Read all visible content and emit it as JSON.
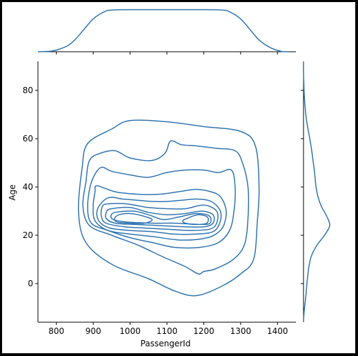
{
  "chart_data": {
    "type": "kde_jointplot",
    "xlabel": "PassengerId",
    "ylabel": "Age",
    "xlim": [
      750,
      1450
    ],
    "ylim": [
      -16,
      92
    ],
    "x_ticks": [
      800,
      900,
      1000,
      1100,
      1200,
      1300,
      1400
    ],
    "y_ticks": [
      0,
      20,
      40,
      60,
      80
    ],
    "color": "#2f74b0",
    "contour_levels": 10,
    "contours": [
      {
        "level": 1,
        "points": [
          [
            950,
            64
          ],
          [
            1000,
            67.5
          ],
          [
            1100,
            67
          ],
          [
            1200,
            65
          ],
          [
            1300,
            63
          ],
          [
            1340,
            57
          ],
          [
            1350,
            40
          ],
          [
            1345,
            25
          ],
          [
            1335,
            10
          ],
          [
            1300,
            4
          ],
          [
            1250,
            -1
          ],
          [
            1180,
            -5
          ],
          [
            1120,
            -3
          ],
          [
            1050,
            2
          ],
          [
            950,
            8
          ],
          [
            880,
            17
          ],
          [
            860,
            30
          ],
          [
            870,
            48
          ],
          [
            885,
            58
          ]
        ]
      },
      {
        "level": 2,
        "points": [
          [
            920,
            54
          ],
          [
            960,
            55
          ],
          [
            1000,
            52
          ],
          [
            1060,
            51
          ],
          [
            1095,
            54
          ],
          [
            1110,
            59
          ],
          [
            1140,
            57.5
          ],
          [
            1180,
            57
          ],
          [
            1235,
            56
          ],
          [
            1285,
            55
          ],
          [
            1305,
            50
          ],
          [
            1320,
            40
          ],
          [
            1320,
            27
          ],
          [
            1310,
            16
          ],
          [
            1280,
            10
          ],
          [
            1230,
            6
          ],
          [
            1200,
            5
          ],
          [
            1185,
            4
          ],
          [
            1150,
            7
          ],
          [
            1090,
            11
          ],
          [
            1020,
            16
          ],
          [
            950,
            20
          ],
          [
            890,
            24
          ],
          [
            872,
            32
          ],
          [
            880,
            42
          ],
          [
            890,
            51
          ]
        ]
      },
      {
        "level": 3,
        "points": [
          [
            920,
            48
          ],
          [
            950,
            46.5
          ],
          [
            1000,
            45
          ],
          [
            1050,
            44
          ],
          [
            1100,
            46
          ],
          [
            1150,
            47
          ],
          [
            1200,
            47
          ],
          [
            1240,
            46
          ],
          [
            1275,
            47
          ],
          [
            1285,
            40
          ],
          [
            1282,
            30
          ],
          [
            1270,
            22
          ],
          [
            1240,
            17
          ],
          [
            1190,
            15
          ],
          [
            1120,
            15
          ],
          [
            1060,
            17
          ],
          [
            1000,
            19
          ],
          [
            940,
            22
          ],
          [
            895,
            25
          ],
          [
            885,
            32
          ],
          [
            895,
            42
          ]
        ]
      },
      {
        "level": 4,
        "points": [
          [
            910,
            40.5
          ],
          [
            960,
            38
          ],
          [
            1020,
            37
          ],
          [
            1080,
            37
          ],
          [
            1130,
            38
          ],
          [
            1180,
            39
          ],
          [
            1220,
            38
          ],
          [
            1245,
            36
          ],
          [
            1260,
            31
          ],
          [
            1258,
            26
          ],
          [
            1245,
            22
          ],
          [
            1210,
            19
          ],
          [
            1140,
            18
          ],
          [
            1060,
            19.5
          ],
          [
            1000,
            20.5
          ],
          [
            940,
            22
          ],
          [
            905,
            26
          ],
          [
            900,
            32
          ],
          [
            905,
            38
          ]
        ]
      },
      {
        "level": 5,
        "points": [
          [
            940,
            35.5
          ],
          [
            980,
            35
          ],
          [
            1020,
            34.5
          ],
          [
            1060,
            34
          ],
          [
            1100,
            34
          ],
          [
            1140,
            34.5
          ],
          [
            1180,
            35
          ],
          [
            1220,
            34
          ],
          [
            1245,
            30
          ],
          [
            1243,
            25
          ],
          [
            1225,
            21.5
          ],
          [
            1180,
            20.5
          ],
          [
            1120,
            20.5
          ],
          [
            1060,
            21.5
          ],
          [
            1000,
            22
          ],
          [
            945,
            23
          ],
          [
            915,
            26
          ],
          [
            912,
            31
          ]
        ]
      },
      {
        "level": 6,
        "points": [
          [
            940,
            33
          ],
          [
            990,
            33
          ],
          [
            1050,
            31.5
          ],
          [
            1100,
            31
          ],
          [
            1150,
            31
          ],
          [
            1200,
            32.5
          ],
          [
            1235,
            30
          ],
          [
            1235,
            25
          ],
          [
            1215,
            22.5
          ],
          [
            1160,
            22
          ],
          [
            1100,
            22.5
          ],
          [
            1040,
            23
          ],
          [
            985,
            23.5
          ],
          [
            935,
            25
          ],
          [
            922,
            28
          ],
          [
            925,
            32
          ]
        ]
      },
      {
        "level": 7,
        "points": [
          [
            950,
            31
          ],
          [
            1000,
            31.5
          ],
          [
            1050,
            29.5
          ],
          [
            1100,
            28.5
          ],
          [
            1150,
            29
          ],
          [
            1195,
            30
          ],
          [
            1225,
            28.5
          ],
          [
            1225,
            25
          ],
          [
            1200,
            23.5
          ],
          [
            1150,
            23.5
          ],
          [
            1080,
            24
          ],
          [
            1010,
            24.5
          ],
          [
            960,
            25
          ],
          [
            935,
            27
          ],
          [
            937,
            30
          ]
        ]
      },
      {
        "level": 8,
        "points": [
          [
            960,
            29.5
          ],
          [
            1010,
            30
          ],
          [
            1050,
            28.5
          ],
          [
            1090,
            26.5
          ],
          [
            1130,
            27.5
          ],
          [
            1180,
            29
          ],
          [
            1215,
            28
          ],
          [
            1217,
            25
          ],
          [
            1190,
            24.5
          ],
          [
            1120,
            25
          ],
          [
            1060,
            25
          ],
          [
            990,
            25.5
          ],
          [
            955,
            26.5
          ],
          [
            948,
            28
          ]
        ]
      },
      {
        "level": 9,
        "points": [
          [
            970,
            28.5
          ],
          [
            1000,
            29
          ],
          [
            1035,
            28
          ],
          [
            1060,
            26.5
          ],
          [
            1040,
            25
          ],
          [
            1000,
            25
          ],
          [
            965,
            25.5
          ],
          [
            958,
            27
          ]
        ]
      },
      {
        "level": 10,
        "points": [
          [
            1155,
            27
          ],
          [
            1185,
            28.5
          ],
          [
            1210,
            27.5
          ],
          [
            1208,
            25
          ],
          [
            1180,
            24.5
          ],
          [
            1150,
            25
          ],
          [
            1143,
            26
          ]
        ]
      }
    ],
    "marginal_x": {
      "x": [
        750,
        780,
        800,
        830,
        850,
        870,
        900,
        930,
        950,
        1000,
        1100,
        1200,
        1250,
        1270,
        1300,
        1330,
        1350,
        1380,
        1410,
        1430
      ],
      "density": [
        0,
        0.01,
        0.04,
        0.14,
        0.28,
        0.48,
        0.78,
        0.95,
        0.99,
        1,
        1,
        1,
        0.99,
        0.95,
        0.78,
        0.48,
        0.28,
        0.1,
        0.01,
        0
      ]
    },
    "marginal_y": {
      "y": [
        -16,
        -12,
        -8,
        -4,
        0,
        4,
        8,
        12,
        16,
        20,
        24,
        28,
        32,
        36,
        40,
        44,
        48,
        52,
        56,
        60,
        64,
        68,
        72,
        76,
        80,
        84,
        88,
        92
      ],
      "density": [
        0,
        0.02,
        0.06,
        0.1,
        0.13,
        0.17,
        0.22,
        0.32,
        0.52,
        0.8,
        1,
        0.88,
        0.68,
        0.55,
        0.48,
        0.44,
        0.4,
        0.35,
        0.3,
        0.24,
        0.17,
        0.11,
        0.07,
        0.04,
        0.02,
        0.01,
        0,
        0
      ]
    }
  }
}
